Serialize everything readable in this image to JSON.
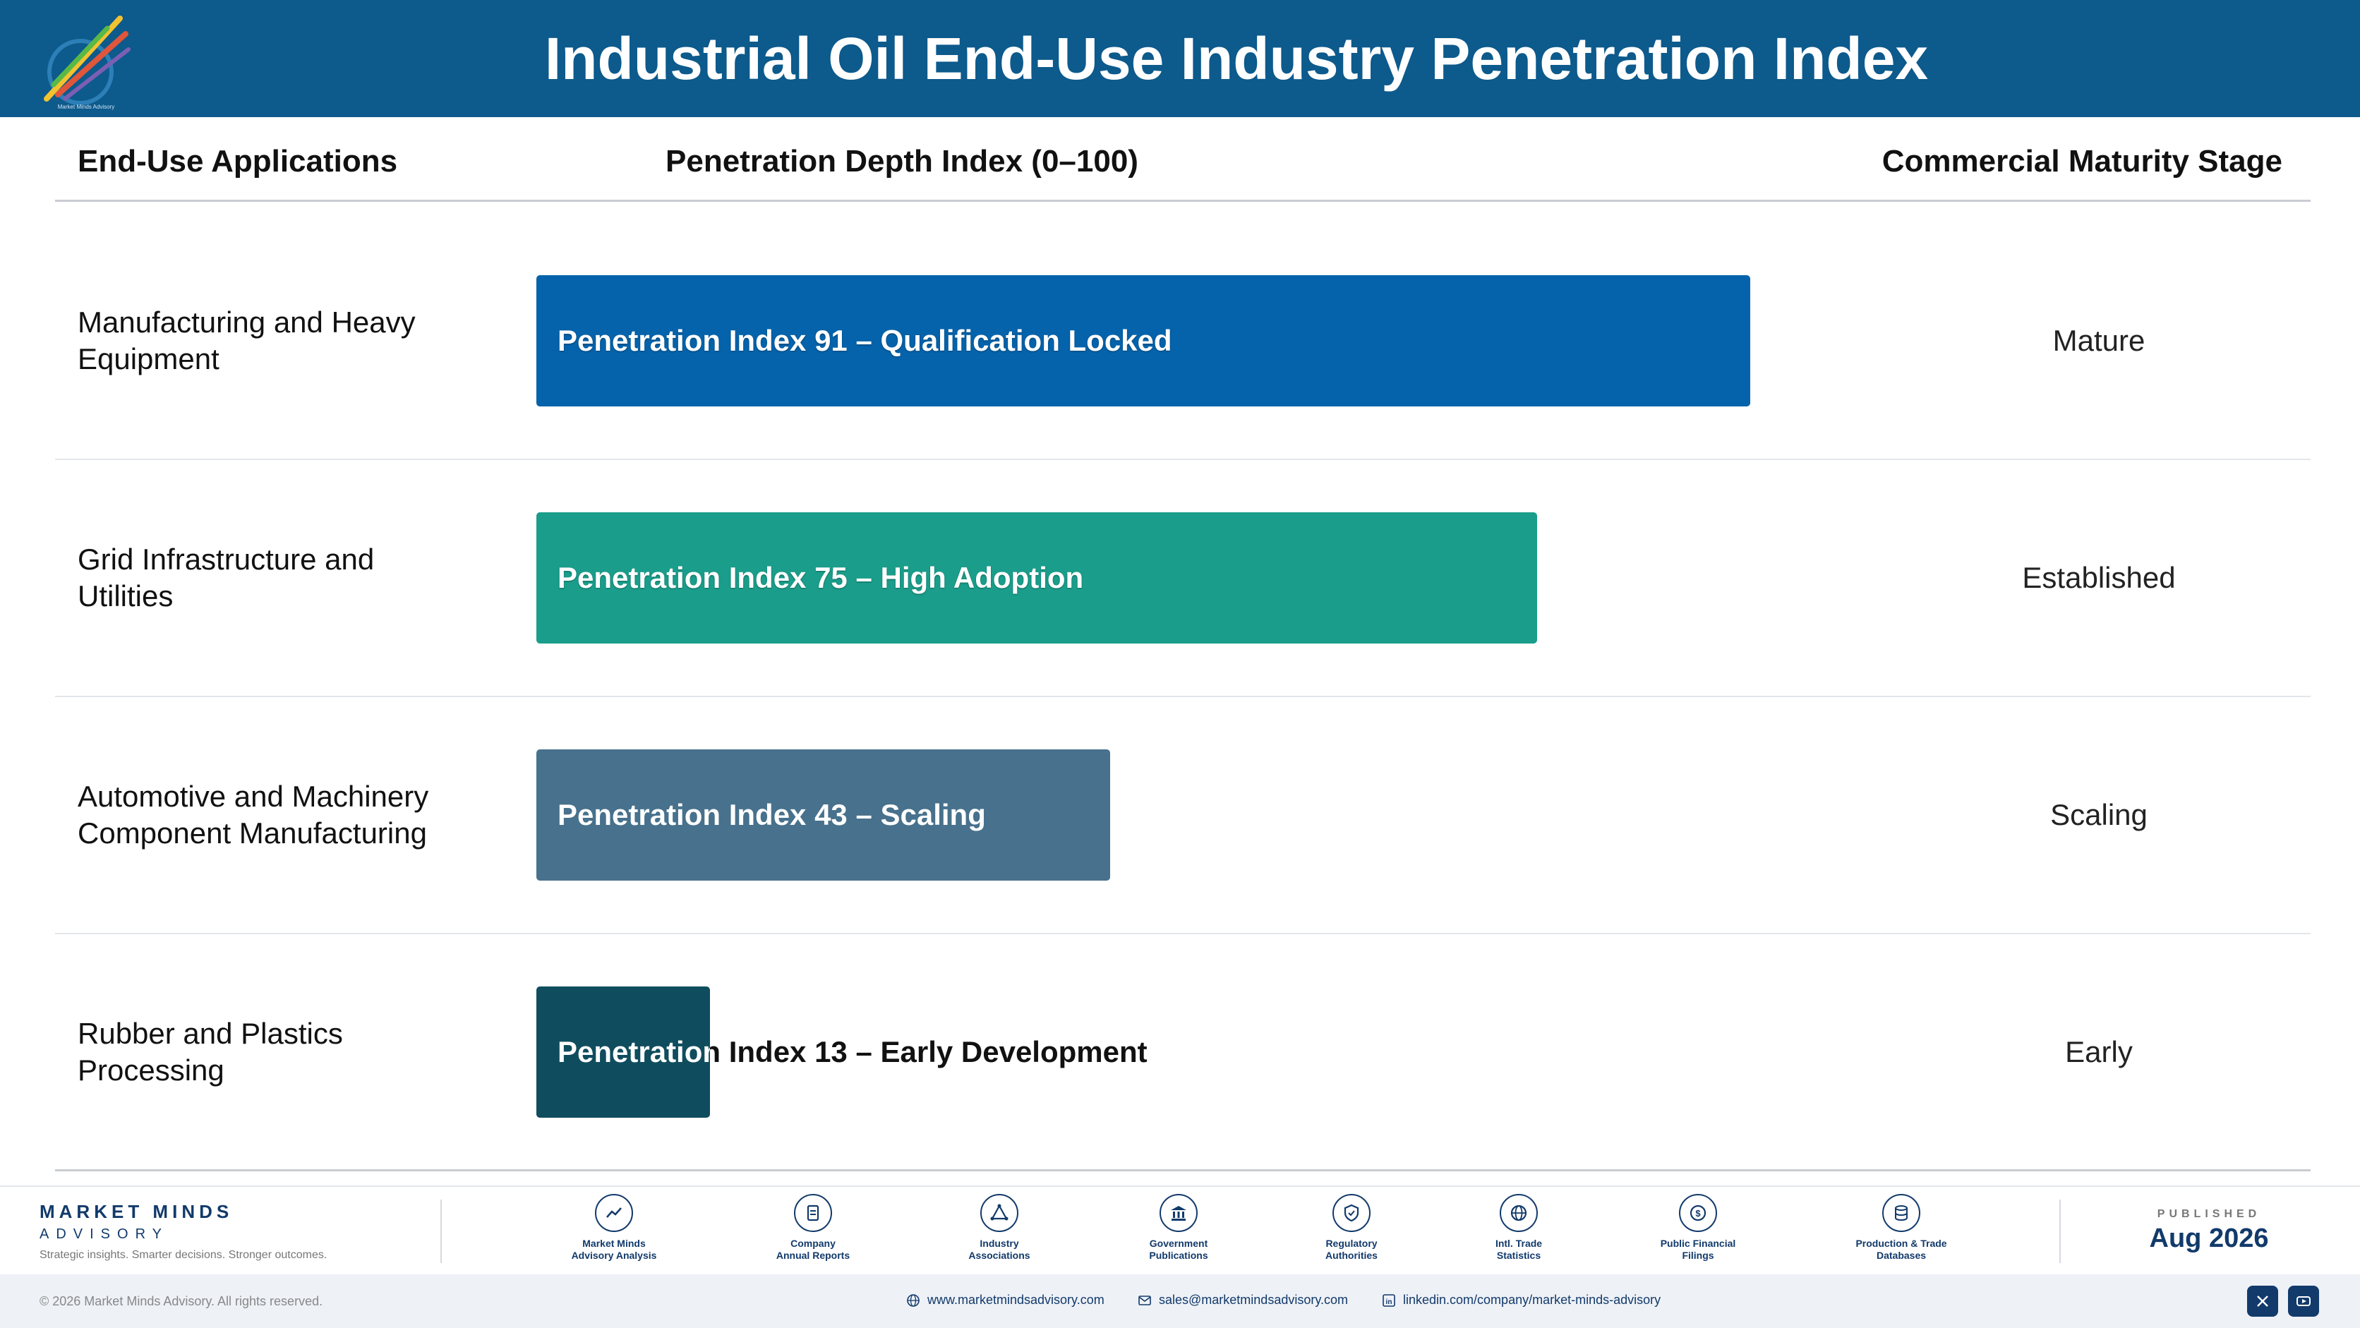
{
  "header": {
    "title": "Industrial Oil End-Use Industry Penetration Index",
    "logo_text": "Market Minds Advisory"
  },
  "columns": {
    "applications": "End-Use Applications",
    "depth": "Penetration Depth Index (0–100)",
    "stage": "Commercial Maturity Stage"
  },
  "chart_data": {
    "type": "bar",
    "orientation": "horizontal",
    "title": "Industrial Oil End-Use Industry Penetration Index",
    "xlabel": "Penetration Depth Index (0–100)",
    "xlim": [
      0,
      100
    ],
    "categories": [
      "Manufacturing and Heavy Equipment",
      "Grid Infrastructure and Utilities",
      "Automotive and Machinery Component Manufacturing",
      "Rubber and Plastics Processing"
    ],
    "values": [
      91,
      75,
      43,
      13
    ],
    "bar_labels": [
      "Penetration Index 91 – Qualification Locked",
      "Penetration Index 75 – High Adoption",
      "Penetration Index 43 – Scaling",
      "Penetration Index 13 – Early Development"
    ],
    "stages": [
      "Mature",
      "Established",
      "Scaling",
      "Early"
    ],
    "colors": [
      "#0563ab",
      "#1a9e8b",
      "#47718c",
      "#0f4d5e"
    ]
  },
  "footer": {
    "brand_name": "MARKET MINDS",
    "brand_sub": "ADVISORY",
    "tagline": "Strategic insights. Smarter decisions. Stronger outcomes.",
    "sources": [
      {
        "label": "Market Minds\nAdvisory Analysis",
        "icon": "chart-icon"
      },
      {
        "label": "Company\nAnnual Reports",
        "icon": "document-icon"
      },
      {
        "label": "Industry\nAssociations",
        "icon": "network-icon"
      },
      {
        "label": "Government\nPublications",
        "icon": "government-icon"
      },
      {
        "label": "Regulatory\nAuthorities",
        "icon": "shield-icon"
      },
      {
        "label": "Intl. Trade\nStatistics",
        "icon": "globe-icon"
      },
      {
        "label": "Public Financial\nFilings",
        "icon": "coin-icon"
      },
      {
        "label": "Production & Trade\nDatabases",
        "icon": "database-icon"
      }
    ],
    "published_label": "PUBLISHED",
    "published_date": "Aug 2026",
    "copyright": "© 2026 Market Minds Advisory. All rights reserved.",
    "website": "www.marketmindsadvisory.com",
    "email": "sales@marketmindsadvisory.com",
    "linkedin": "linkedin.com/company/market-minds-advisory"
  }
}
